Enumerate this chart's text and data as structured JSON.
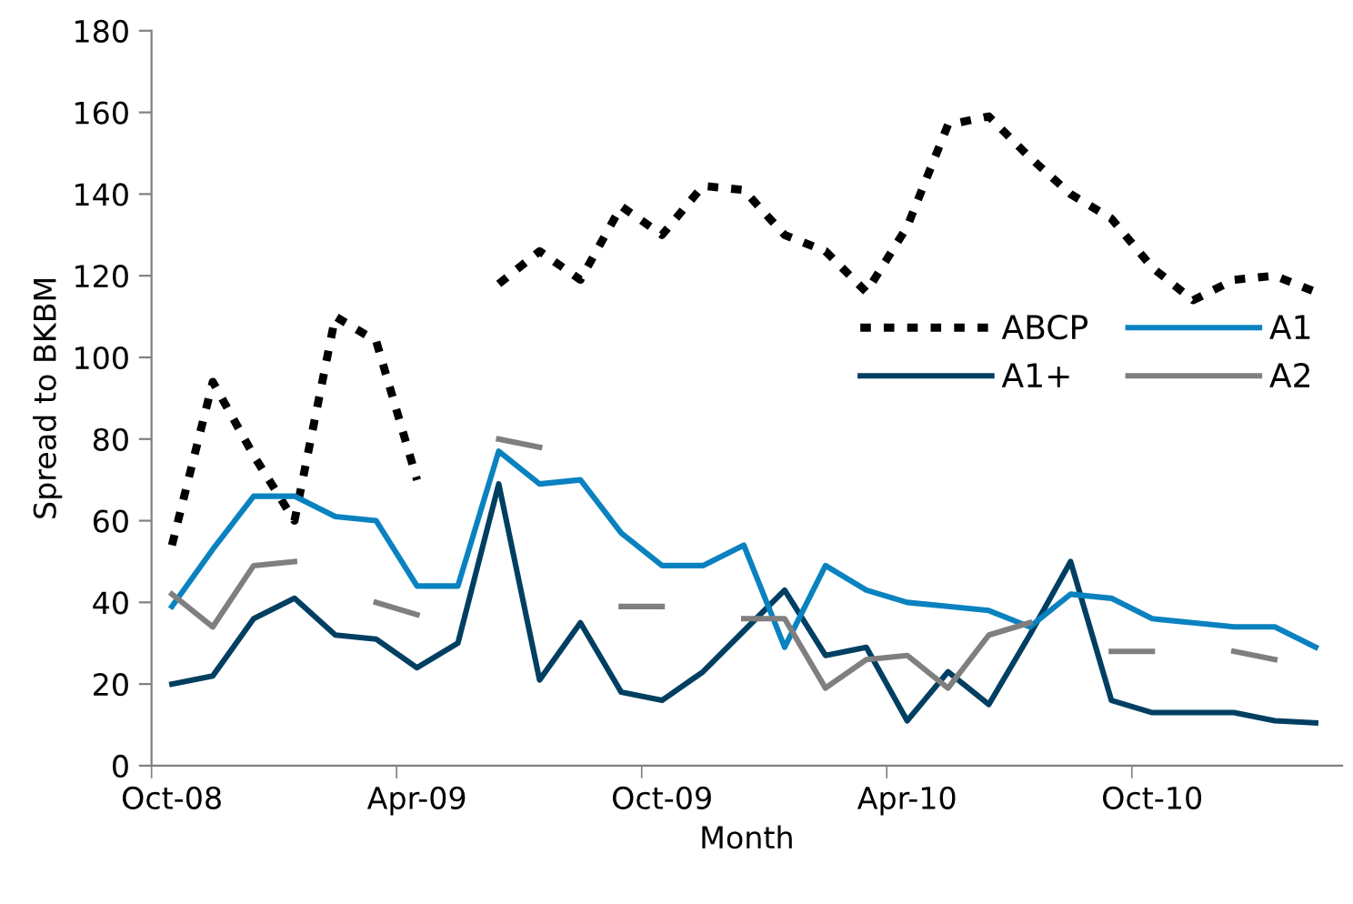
{
  "chart_data": {
    "type": "line",
    "xlabel": "Month",
    "ylabel": "Spread to BKBM",
    "categories": [
      "Oct-08",
      null,
      null,
      null,
      null,
      null,
      "Apr-09",
      null,
      null,
      null,
      null,
      null,
      "Oct-09",
      null,
      null,
      null,
      null,
      null,
      "Apr-10",
      null,
      null,
      null,
      null,
      null,
      "Oct-10",
      null,
      null,
      null,
      null
    ],
    "series": [
      {
        "name": "ABCP",
        "color": "#000000",
        "line_style": "dotted",
        "values": [
          54,
          94,
          76,
          60,
          110,
          104,
          70,
          null,
          118,
          126,
          119,
          137,
          130,
          142,
          141,
          130,
          126,
          116,
          132,
          157,
          159,
          149,
          140,
          134,
          122,
          114,
          119,
          120,
          116
        ]
      },
      {
        "name": "A1+",
        "color": "#003f62",
        "line_style": "solid",
        "values": [
          20,
          22,
          36,
          41,
          32,
          31,
          24,
          30,
          69,
          21,
          35,
          18,
          16,
          23,
          33,
          43,
          27,
          29,
          11,
          23,
          15,
          32,
          50,
          16,
          13,
          13,
          13,
          11,
          10.5
        ]
      },
      {
        "name": "A1",
        "color": "#0a82c0",
        "line_style": "solid",
        "values": [
          39,
          53,
          66,
          66,
          61,
          60,
          44,
          44,
          77,
          69,
          70,
          57,
          49,
          49,
          54,
          29,
          49,
          43,
          40,
          39,
          38,
          34,
          42,
          41,
          36,
          35,
          34,
          34,
          29
        ]
      },
      {
        "name": "A2",
        "color": "#7f7f7f",
        "line_style": "solid",
        "values": [
          42,
          34,
          49,
          50,
          null,
          40,
          37,
          null,
          80,
          78,
          null,
          39,
          39,
          null,
          36,
          36,
          19,
          26,
          27,
          19,
          32,
          35,
          null,
          28,
          28,
          null,
          28,
          26,
          null
        ]
      }
    ],
    "ylim": [
      0,
      180
    ],
    "yticks": [
      0,
      20,
      40,
      60,
      80,
      100,
      120,
      140,
      160,
      180
    ],
    "grid": false,
    "legend": "right",
    "marker": "none"
  }
}
